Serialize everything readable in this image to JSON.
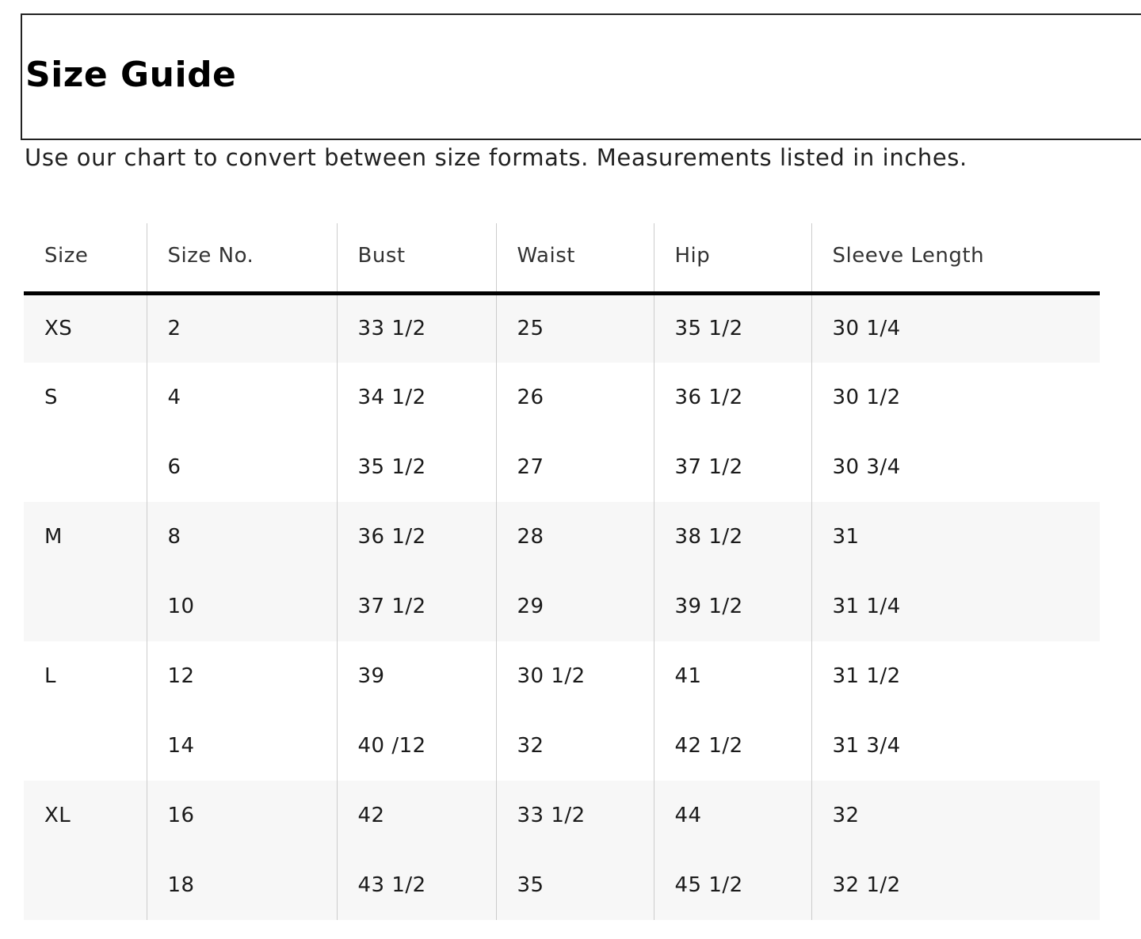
{
  "title": "Size Guide",
  "subtitle": "Use our chart to convert between size formats. Measurements listed in inches.",
  "table": {
    "headers": [
      "Size",
      "Size No.",
      "Bust",
      "Waist",
      "Hip",
      "Sleeve Length"
    ],
    "rows": [
      {
        "shaded": true,
        "cells": [
          "XS",
          "2",
          "33 1/2",
          "25",
          "35 1/2",
          "30 1/4"
        ]
      },
      {
        "shaded": false,
        "cells": [
          "S",
          "4",
          "34 1/2",
          "26",
          "36 1/2",
          "30 1/2"
        ]
      },
      {
        "shaded": false,
        "cells": [
          "",
          "6",
          "35 1/2",
          "27",
          "37 1/2",
          "30 3/4"
        ]
      },
      {
        "shaded": true,
        "cells": [
          "M",
          "8",
          "36 1/2",
          "28",
          "38 1/2",
          "31"
        ]
      },
      {
        "shaded": true,
        "cells": [
          "",
          "10",
          "37 1/2",
          "29",
          "39 1/2",
          "31 1/4"
        ]
      },
      {
        "shaded": false,
        "cells": [
          "L",
          "12",
          "39",
          "30 1/2",
          "41",
          "31 1/2"
        ]
      },
      {
        "shaded": false,
        "cells": [
          "",
          "14",
          "40 /12",
          "32",
          "42 1/2",
          "31 3/4"
        ]
      },
      {
        "shaded": true,
        "cells": [
          "XL",
          "16",
          "42",
          "33 1/2",
          "44",
          "32"
        ]
      },
      {
        "shaded": true,
        "cells": [
          "",
          "18",
          "43 1/2",
          "35",
          "45 1/2",
          "32 1/2"
        ]
      }
    ]
  },
  "colors": {
    "shade": "#f7f7f7",
    "header_rule": "#000000",
    "divider": "#cccccc"
  }
}
